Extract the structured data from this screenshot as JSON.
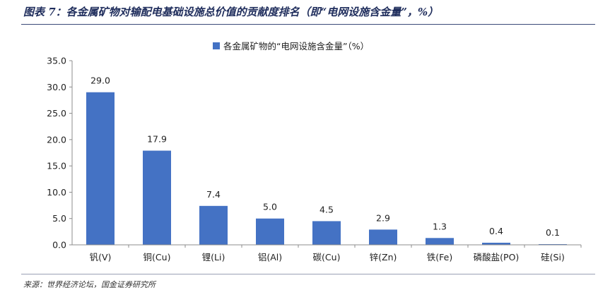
{
  "header": {
    "title": "图表 7：各金属矿物对输配电基础设施总价值的贡献度排名（即“电网设施含金量”，%）"
  },
  "footer": {
    "source": "来源：世界经济论坛，国金证券研究所"
  },
  "colors": {
    "bar": "#4472c4",
    "axis": "#8c8c8c",
    "title": "#1f2d5c"
  },
  "chart_data": {
    "type": "bar",
    "categories": [
      "钒(V)",
      "铜(Cu)",
      "锂(Li)",
      "铝(Al)",
      "碳(Cu)",
      "锌(Zn)",
      "铁(Fe)",
      "磷酸盐(PO)",
      "硅(Si)"
    ],
    "series": [
      {
        "name": "各金属矿物的“电网设施含金量”（%）",
        "values": [
          29.0,
          17.9,
          7.4,
          5.0,
          4.5,
          2.9,
          1.3,
          0.4,
          0.1
        ],
        "data_labels": [
          "29.0",
          "17.9",
          "7.4",
          "5.0",
          "4.5",
          "2.9",
          "1.3",
          "0.4",
          "0.1"
        ]
      }
    ],
    "yticks": [
      "0.0",
      "5.0",
      "10.0",
      "15.0",
      "20.0",
      "25.0",
      "30.0",
      "35.0"
    ],
    "ylim": [
      0,
      35
    ],
    "grid": false,
    "legend_position": "top-center"
  }
}
